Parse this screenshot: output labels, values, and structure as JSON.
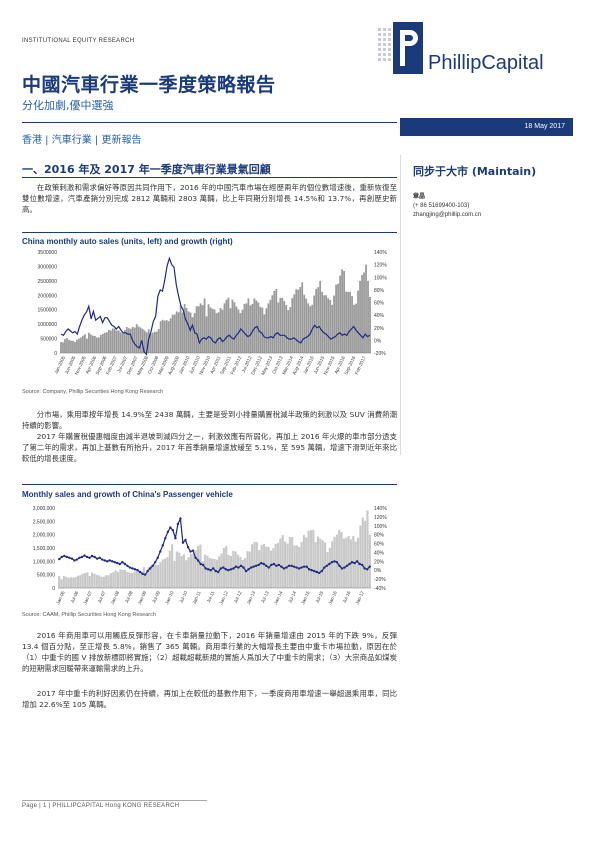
{
  "header": {
    "institution": "INSTITUTIONAL EQUITY RESEARCH",
    "title": "中國汽車行業一季度策略報告",
    "subtitle": "分化加劇,優中選強",
    "tags": "香港 | 汽車行業 | 更新報告",
    "date": "18 May 2017",
    "logo_text": "PhillipCapital"
  },
  "section": {
    "heading": "一、2016 年及 2017 年一季度汽車行業景氣回顧",
    "para1": "在政策刺激和需求偏好等原因共同作用下，2016 年的中國汽車市場在經歷兩年的個位數增速後，重新恢復至雙位數增速，汽車產銷分別完成 2812 萬輛和 2803 萬輛，比上年同期分別增長 14.5%和 13.7%，再創歷史新高。",
    "para2": "分市場，乘用車按年增長 14.9%至 2438 萬輛，主要是受到小排量購置稅減半政策的刺激以及 SUV 消費熱潮持續的影響。",
    "para3": "2017 年購置稅優惠幅度由減半退坡到減四分之一，刺激效應有所弱化，再加上 2016 年火爆的車市部分透支了第二年的需求，再加上基數有所抬升，2017 年首季銷量增速放緩至 5.1%，至 595 萬輛，增速下滑到近年來比較低的增長速度。",
    "para4": "2016 年商用車可以用觸底反彈形容，在卡車銷量拉動下，2016 年銷量增速由 2015 年的下跌 9%，反彈 13.4 個百分點，至正增長 5.8%，銷售了 365 萬輛。商用車行業的大幅增長主要由中重卡市場拉動，原因在於（1）中重卡的國 V 排放新標即將實施；（2）超載超載新規的實施人爲加大了中重卡的需求；（3）大宗商品如煤炭的短期需求回暖帶來運輸需求的上升。",
    "para5": "2017 年中重卡的利好因素仍在持續，再加上在較低的基數作用下，一季度商用車增速一舉超過乘用車，同比增加 22.6%至 105 萬輛。"
  },
  "sidebar": {
    "rating": "同步于大市 (Maintain)",
    "analyst_name": "章晶",
    "analyst_phone": "(+ 86 51699400-103)",
    "analyst_email": "zhangjing@phillip.com.cn"
  },
  "chart1": {
    "title": "China monthly auto sales (units, left) and growth (right)",
    "source": "Source: Company, Phillip Securities Hong Kong Research",
    "left_ticks": [
      "0",
      "500000",
      "1000000",
      "1500000",
      "2000000",
      "2500000",
      "3000000",
      "3500000"
    ],
    "right_ticks": [
      "-20%",
      "0%",
      "20%",
      "40%",
      "60%",
      "80%",
      "100%",
      "120%",
      "140%"
    ],
    "x_labels": [
      "Jan-2005",
      "Jun-2005",
      "Nov-2005",
      "Apr-2006",
      "Sep-2006",
      "Feb-2007",
      "Jul-2007",
      "Dec-2007",
      "May-2008",
      "Oct-2008",
      "Mar-2009",
      "Aug-2009",
      "Jan-2010",
      "Jun-2010",
      "Nov-2010",
      "Apr-2011",
      "Sep-2011",
      "Feb-2012",
      "Jul-2012",
      "Dec-2012",
      "May-2013",
      "Oct-2013",
      "Mar-2014",
      "Aug-2014",
      "Jan-2015",
      "Jun-2015",
      "Nov-2015",
      "Apr-2016",
      "Sep-2016",
      "Feb-2017"
    ],
    "bar_color": "#9a9a9a",
    "line_color": "#1f2a80"
  },
  "chart2": {
    "title": "Monthly sales and growth of China's Passenger vehicle",
    "source": "Source: CAAM, Phillip Securities Hong Kong Research",
    "left_ticks": [
      "0",
      "500,000",
      "1,000,000",
      "1,500,000",
      "2,000,000",
      "2,500,000",
      "3,000,000"
    ],
    "right_ticks": [
      "-40%",
      "-20%",
      "0%",
      "20%",
      "40%",
      "60%",
      "80%",
      "100%",
      "120%",
      "140%"
    ],
    "x_labels": [
      "Jan-06",
      "Jul-06",
      "Jan-07",
      "Jul-07",
      "Jan-08",
      "Jul-08",
      "Jan-09",
      "Jul-09",
      "Jan-10",
      "Jul-10",
      "Jan-11",
      "Jul-11",
      "Jan-12",
      "Jul-12",
      "Jan-13",
      "Jul-13",
      "Jan-14",
      "Jul-14",
      "Jan-15",
      "Jul-15",
      "Jan-16",
      "Jul-16",
      "Jan-17"
    ],
    "bar_color": "#c8c8c8",
    "line_color": "#1f2a80"
  },
  "chart_data": [
    {
      "type": "bar",
      "title": "China monthly auto sales (units, left) and growth (right)",
      "ylim": [
        0,
        3500000
      ],
      "y2lim": [
        -20,
        140
      ],
      "series": [
        {
          "values": [
            380000,
            370000,
            480000,
            520000,
            450000,
            430000,
            420000,
            380000,
            460000,
            500000,
            540000,
            600000,
            650000,
            500000,
            700000,
            640000,
            600000,
            590000,
            540000,
            540000,
            620000,
            660000,
            700000,
            720000,
            800000,
            780000,
            850000,
            850000,
            780000,
            780000,
            720000,
            700000,
            800000,
            900000,
            860000,
            840000,
            900000,
            880000,
            1000000,
            920000,
            880000,
            830000,
            780000,
            720000,
            820000,
            680000,
            700000,
            740000,
            740000,
            830000,
            1100000,
            1150000,
            1120000,
            1140000,
            1100000,
            1200000,
            1330000,
            1330000,
            1440000,
            1410000,
            1660000,
            1400000,
            1700000,
            1560000,
            1440000,
            1400000,
            1240000,
            1380000,
            1620000,
            1620000,
            1720000,
            1660000,
            1890000,
            1270000,
            1690000,
            1580000,
            1530000,
            1510000,
            1380000,
            1410000,
            1560000,
            1500000,
            1720000,
            1850000,
            1920000,
            1550000,
            1850000,
            1760000,
            1610000,
            1510000,
            1380000,
            1500000,
            1700000,
            1720000,
            1890000,
            1650000,
            1700000,
            1890000,
            1820000,
            1750000,
            1600000,
            1570000,
            1340000,
            1550000,
            1720000,
            1840000,
            2000000,
            2150000,
            2220000,
            1750000,
            1910000,
            1910000,
            1800000,
            1660000,
            1490000,
            1590000,
            1900000,
            2030000,
            2210000,
            2190000,
            2290000,
            2450000,
            2020000,
            1890000,
            1720000,
            1620000,
            1670000,
            1990000,
            2220000,
            2280000,
            2500000,
            2120000,
            2000000,
            2000000,
            1900000,
            1840000,
            1670000,
            1990000,
            2370000,
            2400000,
            2680000,
            2900000,
            2840000,
            2130000,
            2120000,
            2120000,
            1970000,
            1670000,
            1710000,
            2160000,
            2500000,
            2700000,
            2790000,
            3060000,
            2500000,
            1940000
          ],
          "name": "sales"
        },
        {
          "values": [
            10,
            8,
            14,
            18,
            15,
            12,
            14,
            10,
            22,
            32,
            40,
            45,
            54,
            34,
            46,
            32,
            35,
            38,
            28,
            36,
            36,
            30,
            24,
            22,
            18,
            22,
            16,
            12,
            12,
            10,
            10,
            0,
            -6,
            -10,
            -12,
            0,
            -18,
            -22,
            2,
            14,
            30,
            38,
            70,
            80,
            78,
            96,
            118,
            130,
            120,
            116,
            88,
            70,
            55,
            48,
            33,
            26,
            16,
            24,
            12,
            10,
            -4,
            2,
            4,
            2,
            6,
            4,
            -2,
            -4,
            2,
            4,
            -2,
            1,
            6,
            8,
            4,
            2,
            8,
            12,
            18,
            14,
            10,
            6,
            8,
            14,
            20,
            22,
            14,
            12,
            6,
            4,
            4,
            6,
            4,
            10,
            12,
            8,
            8,
            8,
            4,
            2,
            2,
            4,
            1,
            -2,
            -4,
            2,
            4,
            6,
            10,
            18,
            24,
            20,
            22,
            16,
            12,
            10,
            6,
            2,
            4,
            6,
            10,
            12,
            8,
            10,
            8,
            14,
            18,
            22,
            16,
            12,
            8,
            4,
            10,
            6,
            8
          ],
          "name": "growth"
        }
      ]
    },
    {
      "type": "bar",
      "title": "Monthly sales and growth of China's Passenger vehicle",
      "ylim": [
        0,
        3000000
      ],
      "y2lim": [
        -40,
        140
      ],
      "series": [
        {
          "values": [
            450000,
            330000,
            450000,
            420000,
            380000,
            400000,
            390000,
            410000,
            460000,
            480000,
            530000,
            560000,
            590000,
            450000,
            580000,
            530000,
            490000,
            470000,
            420000,
            420000,
            480000,
            480000,
            560000,
            590000,
            660000,
            600000,
            700000,
            680000,
            680000,
            600000,
            560000,
            560000,
            620000,
            630000,
            610000,
            620000,
            780000,
            560000,
            770000,
            830000,
            870000,
            880000,
            860000,
            970000,
            1070000,
            1100000,
            1160000,
            1400000,
            1640000,
            1020000,
            1370000,
            1330000,
            1200000,
            1260000,
            1040000,
            1150000,
            1280000,
            1290000,
            1410000,
            1570000,
            1630000,
            1000000,
            1250000,
            1200000,
            1130000,
            1100000,
            1090000,
            1060000,
            1190000,
            1300000,
            1500000,
            1570000,
            1240000,
            1200000,
            1390000,
            1370000,
            1250000,
            1170000,
            1050000,
            1120000,
            1380000,
            1370000,
            1640000,
            1730000,
            1720000,
            1420000,
            1610000,
            1650000,
            1550000,
            1540000,
            1400000,
            1490000,
            1650000,
            1690000,
            1860000,
            1990000,
            1740000,
            1660000,
            1910000,
            1910000,
            1600000,
            1600000,
            1540000,
            1720000,
            1990000,
            1900000,
            2150000,
            2170000,
            2180000,
            1720000,
            1930000,
            1850000,
            1790000,
            1710000,
            1350000,
            1510000,
            1750000,
            1920000,
            2000000,
            2180000,
            2100000,
            1850000,
            1890000,
            1950000,
            1820000,
            1950000,
            1740000,
            1880000,
            2340000,
            2640000,
            2520000,
            2910000,
            2000000
          ],
          "name": "sales"
        },
        {
          "values": [
            25,
            30,
            32,
            30,
            28,
            26,
            22,
            24,
            28,
            30,
            33,
            30,
            28,
            32,
            30,
            26,
            28,
            24,
            22,
            20,
            22,
            20,
            18,
            16,
            14,
            18,
            14,
            10,
            6,
            4,
            2,
            0,
            -4,
            -8,
            -10,
            -2,
            4,
            10,
            18,
            28,
            42,
            56,
            72,
            86,
            96,
            90,
            72,
            104,
            116,
            62,
            68,
            52,
            42,
            44,
            28,
            22,
            14,
            12,
            4,
            2,
            0,
            4,
            -2,
            -4,
            4,
            6,
            2,
            0,
            2,
            4,
            8,
            6,
            10,
            6,
            -2,
            2,
            6,
            8,
            10,
            12,
            16,
            14,
            10,
            6,
            12,
            14,
            10,
            12,
            8,
            4,
            6,
            10,
            10,
            8,
            6,
            4,
            6,
            8,
            8,
            2,
            0,
            -2,
            -4,
            -6,
            -2,
            6,
            10,
            14,
            18,
            20,
            18,
            10,
            4,
            6,
            10,
            14,
            18,
            16,
            20,
            14,
            12,
            4,
            2,
            8
          ],
          "name": "growth"
        }
      ]
    }
  ],
  "footer": {
    "text": "Page | 1 | PHILLIPCAPITAL Hong KONG RESEARCH"
  }
}
